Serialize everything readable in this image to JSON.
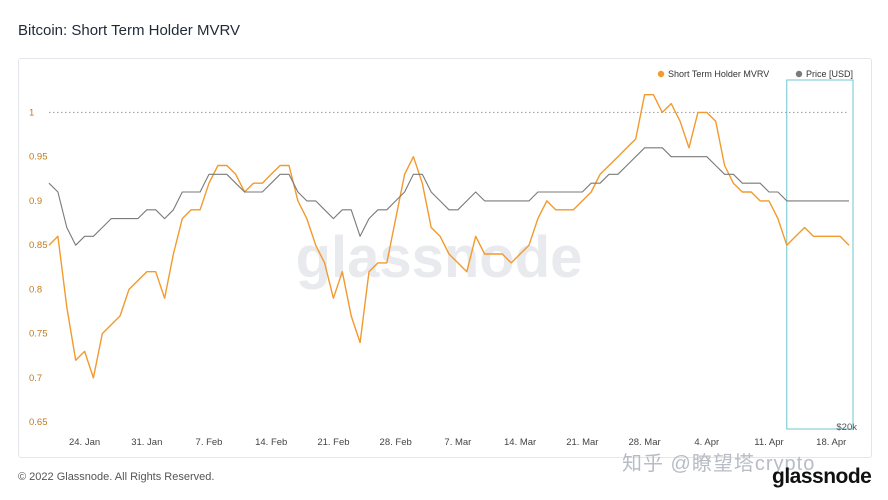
{
  "title": "Bitcoin: Short Term Holder MVRV",
  "footer": "© 2022 Glassnode. All Rights Reserved.",
  "brand": "glassnode",
  "watermark": "glassnode",
  "overlay_text": "知乎 @瞭望塔crypto",
  "colors": {
    "sth_mvrv": "#f29a2e",
    "price": "#7a7a7a",
    "highlight": "#6fc4cf",
    "ref_line": "#9a9a9a"
  },
  "chart_data": {
    "type": "line",
    "title": "Bitcoin: Short Term Holder MVRV",
    "legend_position": "top-right",
    "grid": false,
    "reference_line_y": 1,
    "x_tick_labels": [
      "24. Jan",
      "31. Jan",
      "7. Feb",
      "14. Feb",
      "21. Feb",
      "28. Feb",
      "7. Mar",
      "14. Mar",
      "21. Mar",
      "28. Mar",
      "4. Apr",
      "11. Apr",
      "18. Apr"
    ],
    "y_ticks": [
      0.65,
      0.7,
      0.75,
      0.8,
      0.85,
      0.9,
      0.95,
      1
    ],
    "y_tick_labels": [
      "0.65",
      "0.7",
      "0.75",
      "0.8",
      "0.85",
      "0.9",
      "0.95",
      "1"
    ],
    "ylim": [
      0.64,
      1.04
    ],
    "right_axis_label": "$20k",
    "highlight_range": [
      "2022-04-13",
      "2022-04-20"
    ],
    "x_range": [
      "2022-01-20",
      "2022-04-20"
    ],
    "series": [
      {
        "name": "Short Term Holder MVRV",
        "color": "#f29a2e",
        "x": [
          "2022-01-20",
          "2022-01-21",
          "2022-01-22",
          "2022-01-23",
          "2022-01-24",
          "2022-01-25",
          "2022-01-26",
          "2022-01-27",
          "2022-01-28",
          "2022-01-29",
          "2022-01-30",
          "2022-01-31",
          "2022-02-01",
          "2022-02-02",
          "2022-02-03",
          "2022-02-04",
          "2022-02-05",
          "2022-02-06",
          "2022-02-07",
          "2022-02-08",
          "2022-02-09",
          "2022-02-10",
          "2022-02-11",
          "2022-02-12",
          "2022-02-13",
          "2022-02-14",
          "2022-02-15",
          "2022-02-16",
          "2022-02-17",
          "2022-02-18",
          "2022-02-19",
          "2022-02-20",
          "2022-02-21",
          "2022-02-22",
          "2022-02-23",
          "2022-02-24",
          "2022-02-25",
          "2022-02-26",
          "2022-02-27",
          "2022-02-28",
          "2022-03-01",
          "2022-03-02",
          "2022-03-03",
          "2022-03-04",
          "2022-03-05",
          "2022-03-06",
          "2022-03-07",
          "2022-03-08",
          "2022-03-09",
          "2022-03-10",
          "2022-03-11",
          "2022-03-12",
          "2022-03-13",
          "2022-03-14",
          "2022-03-15",
          "2022-03-16",
          "2022-03-17",
          "2022-03-18",
          "2022-03-19",
          "2022-03-20",
          "2022-03-21",
          "2022-03-22",
          "2022-03-23",
          "2022-03-24",
          "2022-03-25",
          "2022-03-26",
          "2022-03-27",
          "2022-03-28",
          "2022-03-29",
          "2022-03-30",
          "2022-03-31",
          "2022-04-01",
          "2022-04-02",
          "2022-04-03",
          "2022-04-04",
          "2022-04-05",
          "2022-04-06",
          "2022-04-07",
          "2022-04-08",
          "2022-04-09",
          "2022-04-10",
          "2022-04-11",
          "2022-04-12",
          "2022-04-13",
          "2022-04-14",
          "2022-04-15",
          "2022-04-16",
          "2022-04-17",
          "2022-04-18",
          "2022-04-19",
          "2022-04-20"
        ],
        "y": [
          0.85,
          0.86,
          0.78,
          0.72,
          0.73,
          0.7,
          0.75,
          0.76,
          0.77,
          0.8,
          0.81,
          0.82,
          0.82,
          0.79,
          0.84,
          0.88,
          0.89,
          0.89,
          0.92,
          0.94,
          0.94,
          0.93,
          0.91,
          0.92,
          0.92,
          0.93,
          0.94,
          0.94,
          0.9,
          0.88,
          0.85,
          0.83,
          0.79,
          0.82,
          0.77,
          0.74,
          0.82,
          0.83,
          0.83,
          0.88,
          0.93,
          0.95,
          0.92,
          0.87,
          0.86,
          0.84,
          0.83,
          0.82,
          0.86,
          0.84,
          0.84,
          0.84,
          0.83,
          0.84,
          0.85,
          0.88,
          0.9,
          0.89,
          0.89,
          0.89,
          0.9,
          0.91,
          0.93,
          0.94,
          0.95,
          0.96,
          0.97,
          1.02,
          1.02,
          1.0,
          1.01,
          0.99,
          0.96,
          1.0,
          1.0,
          0.99,
          0.94,
          0.92,
          0.91,
          0.91,
          0.9,
          0.9,
          0.88,
          0.85,
          0.86,
          0.87,
          0.86,
          0.86,
          0.86,
          0.86,
          0.85
        ]
      },
      {
        "name": "Price [USD]",
        "color": "#7a7a7a",
        "x": [
          "2022-01-20",
          "2022-01-21",
          "2022-01-22",
          "2022-01-23",
          "2022-01-24",
          "2022-01-25",
          "2022-01-26",
          "2022-01-27",
          "2022-01-28",
          "2022-01-29",
          "2022-01-30",
          "2022-01-31",
          "2022-02-01",
          "2022-02-02",
          "2022-02-03",
          "2022-02-04",
          "2022-02-05",
          "2022-02-06",
          "2022-02-07",
          "2022-02-08",
          "2022-02-09",
          "2022-02-10",
          "2022-02-11",
          "2022-02-12",
          "2022-02-13",
          "2022-02-14",
          "2022-02-15",
          "2022-02-16",
          "2022-02-17",
          "2022-02-18",
          "2022-02-19",
          "2022-02-20",
          "2022-02-21",
          "2022-02-22",
          "2022-02-23",
          "2022-02-24",
          "2022-02-25",
          "2022-02-26",
          "2022-02-27",
          "2022-02-28",
          "2022-03-01",
          "2022-03-02",
          "2022-03-03",
          "2022-03-04",
          "2022-03-05",
          "2022-03-06",
          "2022-03-07",
          "2022-03-08",
          "2022-03-09",
          "2022-03-10",
          "2022-03-11",
          "2022-03-12",
          "2022-03-13",
          "2022-03-14",
          "2022-03-15",
          "2022-03-16",
          "2022-03-17",
          "2022-03-18",
          "2022-03-19",
          "2022-03-20",
          "2022-03-21",
          "2022-03-22",
          "2022-03-23",
          "2022-03-24",
          "2022-03-25",
          "2022-03-26",
          "2022-03-27",
          "2022-03-28",
          "2022-03-29",
          "2022-03-30",
          "2022-03-31",
          "2022-04-01",
          "2022-04-02",
          "2022-04-03",
          "2022-04-04",
          "2022-04-05",
          "2022-04-06",
          "2022-04-07",
          "2022-04-08",
          "2022-04-09",
          "2022-04-10",
          "2022-04-11",
          "2022-04-12",
          "2022-04-13",
          "2022-04-14",
          "2022-04-15",
          "2022-04-16",
          "2022-04-17",
          "2022-04-18",
          "2022-04-19",
          "2022-04-20"
        ],
        "y": [
          0.92,
          0.91,
          0.87,
          0.85,
          0.86,
          0.86,
          0.87,
          0.88,
          0.88,
          0.88,
          0.88,
          0.89,
          0.89,
          0.88,
          0.89,
          0.91,
          0.91,
          0.91,
          0.93,
          0.93,
          0.93,
          0.92,
          0.91,
          0.91,
          0.91,
          0.92,
          0.93,
          0.93,
          0.91,
          0.9,
          0.9,
          0.89,
          0.88,
          0.89,
          0.89,
          0.86,
          0.88,
          0.89,
          0.89,
          0.9,
          0.91,
          0.93,
          0.93,
          0.91,
          0.9,
          0.89,
          0.89,
          0.9,
          0.91,
          0.9,
          0.9,
          0.9,
          0.9,
          0.9,
          0.9,
          0.91,
          0.91,
          0.91,
          0.91,
          0.91,
          0.91,
          0.92,
          0.92,
          0.93,
          0.93,
          0.94,
          0.95,
          0.96,
          0.96,
          0.96,
          0.95,
          0.95,
          0.95,
          0.95,
          0.95,
          0.94,
          0.93,
          0.93,
          0.92,
          0.92,
          0.92,
          0.91,
          0.91,
          0.9,
          0.9,
          0.9,
          0.9,
          0.9,
          0.9,
          0.9,
          0.9
        ]
      }
    ]
  }
}
